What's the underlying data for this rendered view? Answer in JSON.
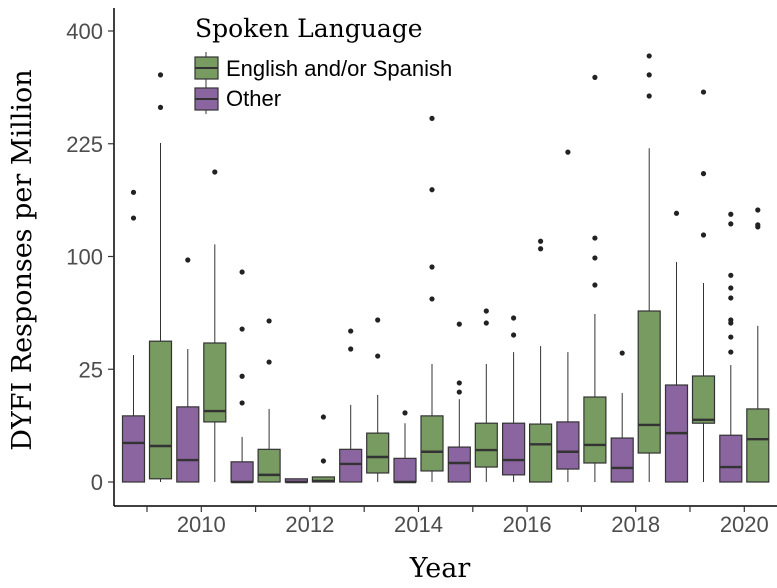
{
  "chart_data": {
    "type": "box",
    "title": "",
    "xlabel": "Year",
    "ylabel": "DYFI Responses per Million",
    "y_scale": "sqrt",
    "ylim": [
      0,
      400
    ],
    "y_ticks": [
      0,
      25,
      100,
      225,
      400
    ],
    "y_tick_labels": [
      "0",
      "25",
      "100",
      "225",
      "400"
    ],
    "x_categories": [
      2009,
      2010,
      2011,
      2012,
      2013,
      2014,
      2015,
      2016,
      2017,
      2018,
      2019,
      2020
    ],
    "x_tick_labels": [
      "2010",
      "2012",
      "2014",
      "2016",
      "2018",
      "2020"
    ],
    "legend": {
      "title": "Spoken Language",
      "position": "top-left",
      "entries": [
        {
          "name": "English and/or Spanish",
          "color": "#789b62"
        },
        {
          "name": "Other",
          "color": "#8b65a0"
        }
      ]
    },
    "series": [
      {
        "name": "Other",
        "color": "#8b65a0",
        "boxes": [
          {
            "year": 2009,
            "low": 0,
            "q1": 0,
            "median": 3.0,
            "q3": 8.6,
            "high": 31.7,
            "outliers": [
              137,
              165
            ]
          },
          {
            "year": 2010,
            "low": 0,
            "q1": 0,
            "median": 0.95,
            "q3": 11.1,
            "high": 34.8,
            "outliers": [
              96.9
            ]
          },
          {
            "year": 2011,
            "low": 0,
            "q1": 0,
            "median": 0,
            "q3": 0.8,
            "high": 4.0,
            "outliers": [
              12.3,
              22,
              46,
              86.7
            ]
          },
          {
            "year": 2012,
            "low": 0,
            "q1": 0,
            "median": 0,
            "q3": 0.02,
            "high": 0.02,
            "outliers": []
          },
          {
            "year": 2013,
            "low": 0,
            "q1": 0,
            "median": 0.64,
            "q3": 2.1,
            "high": 11.7,
            "outliers": [
              34.8,
              44.8
            ]
          },
          {
            "year": 2014,
            "low": 0,
            "q1": 0,
            "median": 0,
            "q3": 1.1,
            "high": 6.8,
            "outliers": [
              9.4
            ]
          },
          {
            "year": 2015,
            "low": 0,
            "q1": 0,
            "median": 0.71,
            "q3": 2.4,
            "high": 13.5,
            "outliers": [
              15.9,
              19.3,
              49
            ]
          },
          {
            "year": 2016,
            "low": 0,
            "q1": 0.1,
            "median": 0.95,
            "q3": 6.8,
            "high": 33.2,
            "outliers": [
              42.5,
              52.9
            ]
          },
          {
            "year": 2017,
            "low": 0,
            "q1": 0.33,
            "median": 1.8,
            "q3": 7.1,
            "high": 33.2,
            "outliers": [
              214
            ]
          },
          {
            "year": 2018,
            "low": 0,
            "q1": 0,
            "median": 0.39,
            "q3": 3.8,
            "high": 15.6,
            "outliers": [
              32.7
            ]
          },
          {
            "year": 2019,
            "low": 0,
            "q1": 0,
            "median": 4.7,
            "q3": 18.5,
            "high": 95.2,
            "outliers": [
              142
            ]
          },
          {
            "year": 2020,
            "low": 0,
            "q1": 0,
            "median": 0.44,
            "q3": 4.3,
            "high": 26.9,
            "outliers": [
              33.2,
              41.3,
              49.7,
              51.6,
              66.6,
              74,
              84,
              131,
              141
            ]
          }
        ]
      },
      {
        "name": "English and/or Spanish",
        "color": "#789b62",
        "boxes": [
          {
            "year": 2009,
            "low": 0,
            "q1": 0.02,
            "median": 2.55,
            "q3": 39,
            "high": 226,
            "outliers": [
              276,
              326
            ]
          },
          {
            "year": 2010,
            "low": 0,
            "q1": 7.1,
            "median": 9.9,
            "q3": 38,
            "high": 111,
            "outliers": [
              189
            ]
          },
          {
            "year": 2011,
            "low": 0,
            "q1": 0,
            "median": 0.1,
            "q3": 2.1,
            "high": 10.5,
            "outliers": [
              28.3,
              51
            ]
          },
          {
            "year": 2012,
            "low": 0,
            "q1": 0,
            "median": 0.002,
            "q3": 0.05,
            "high": 0.05,
            "outliers": [
              0.87,
              8.3
            ]
          },
          {
            "year": 2013,
            "low": 0,
            "q1": 0.16,
            "median": 1.23,
            "q3": 4.7,
            "high": 14.9,
            "outliers": [
              31.2,
              51.6
            ]
          },
          {
            "year": 2014,
            "low": 0,
            "q1": 0.24,
            "median": 1.8,
            "q3": 8.6,
            "high": 27.4,
            "outliers": [
              65.9,
              90.9,
              168,
              260
            ]
          },
          {
            "year": 2015,
            "low": 0,
            "q1": 0.44,
            "median": 2.0,
            "q3": 6.8,
            "high": 27.4,
            "outliers": [
              49.7,
              57.5
            ]
          },
          {
            "year": 2016,
            "low": 0,
            "q1": 0,
            "median": 2.8,
            "q3": 6.6,
            "high": 36.4,
            "outliers": [
              107,
              114
            ]
          },
          {
            "year": 2017,
            "low": 0,
            "q1": 0.71,
            "median": 2.7,
            "q3": 14.2,
            "high": 55.5,
            "outliers": [
              76.3,
              98.7,
              117,
              322
            ]
          },
          {
            "year": 2018,
            "low": 0,
            "q1": 1.65,
            "median": 6.4,
            "q3": 57.5,
            "high": 219,
            "outliers": [
              293,
              326,
              357
            ]
          },
          {
            "year": 2019,
            "low": 0,
            "q1": 6.8,
            "median": 7.6,
            "q3": 22.1,
            "high": 77.9,
            "outliers": [
              120,
              187,
              299
            ]
          },
          {
            "year": 2020,
            "low": 0,
            "q1": 0,
            "median": 3.6,
            "q3": 10.5,
            "high": 47.9,
            "outliers": [
              128,
              130,
              145.5
            ]
          }
        ]
      }
    ]
  }
}
